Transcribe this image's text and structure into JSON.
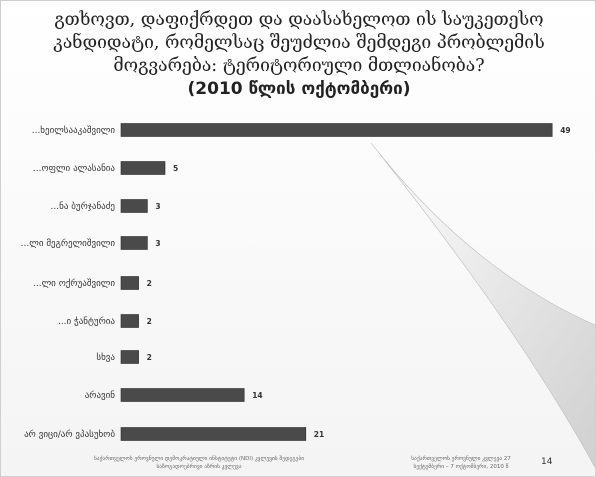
{
  "title": {
    "line1": "გთხოვთ, დაფიქრდეთ და დაასახელოთ ის საუკეთესო",
    "line2": "კანდიდატი, რომელსაც შეუძლია შემდეგი პრობლემის",
    "line3": "მოგვარება: ტერიტორიული მთლიანობა?",
    "subtitle": "(2010 წლის ოქტომბერი)"
  },
  "chart_data": {
    "type": "bar",
    "orientation": "horizontal",
    "categories": [
      "სააკაშვილი",
      "ალასანია",
      "ბურჯანაძე",
      "მეგრელიშვილი",
      "ოქრუაშვილი",
      "ჭანტურია",
      "სხვა",
      "არავინ",
      "არ ვიცი/არ ვპასუხობ"
    ],
    "category_labels": [
      "...ხეილსააკაშვილი",
      "...ოფლი ალასანია",
      "...ნა ბურჯანაძე",
      "...ლი მეგრელიშვილი",
      "...ლი ოქრუაშვილი",
      "...ი ჭანტურია",
      "სხვა",
      "არავინ",
      "არ ვიცი/არ ვპასუხობ"
    ],
    "values": [
      49,
      5,
      3,
      3,
      2,
      2,
      2,
      14,
      21
    ],
    "value_labels": [
      "49",
      "5",
      "3",
      "3",
      "2",
      "2",
      "2",
      "14",
      "21"
    ],
    "xlim": [
      0,
      50
    ],
    "grid": false,
    "legend": "none"
  },
  "footer": {
    "left_line1": "საქართველოს ეროვნული დემოკრატიული ინსტიტუტი (NDI) კვლევის შედეგები",
    "left_line2": "საზოგადოებრივი აზრის კვლევა",
    "right_line1": "საქართველოს ეროვნული კვლევა 27",
    "right_line2": "სექტემბერი – 7 ოქტომბერი, 2010 წ",
    "page_number": "14"
  },
  "colors": {
    "bar": "#4a4a4a",
    "bar_edge": "#2b2b2b",
    "accent_wedge": "#d9d9d9",
    "background": "#f7f7f7"
  }
}
